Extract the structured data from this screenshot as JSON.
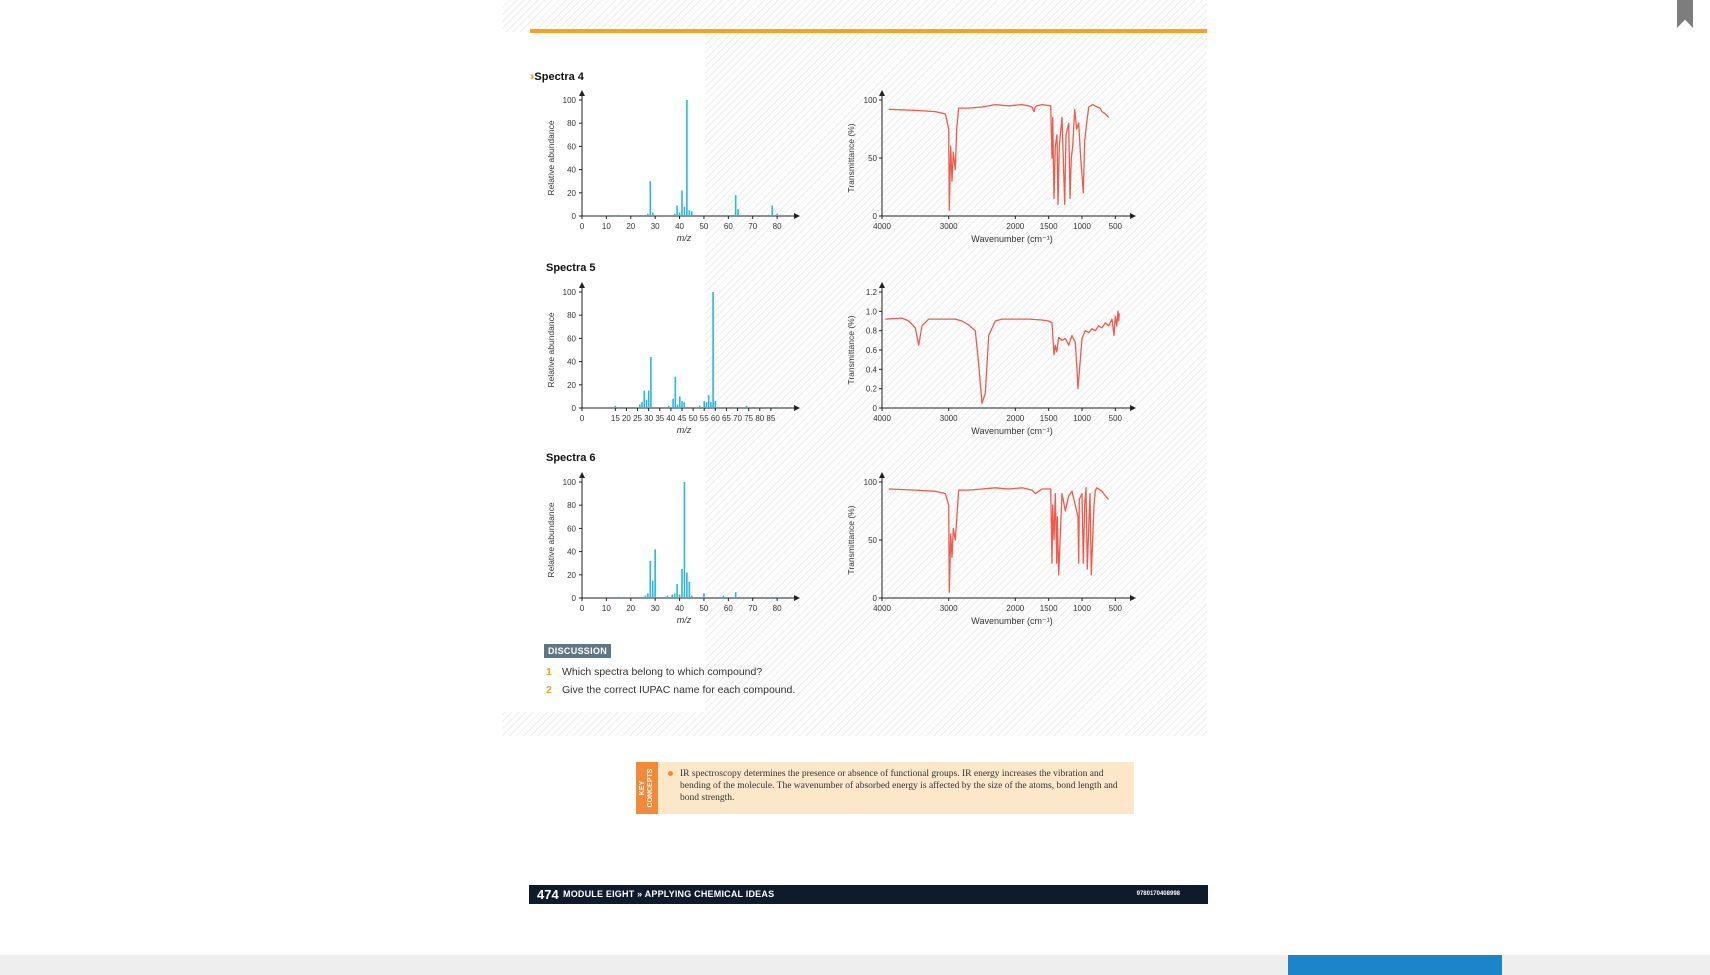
{
  "spectra": [
    {
      "title": "Spectra 4",
      "has_chevron": true
    },
    {
      "title": "Spectra 5",
      "has_chevron": false
    },
    {
      "title": "Spectra 6",
      "has_chevron": false
    }
  ],
  "discussion": {
    "label": "DISCUSSION",
    "questions": [
      {
        "num": "1",
        "text": "Which spectra belong to which compound?"
      },
      {
        "num": "2",
        "text": "Give the correct IUPAC name for each compound."
      }
    ]
  },
  "key_concepts": {
    "tab_label": "KEY CONCEPTS",
    "text": "IR spectroscopy determines the presence or absence of functional groups. IR energy increases the vibration and bending of the molecule. The wavenumber of absorbed energy is affected by the size of the atoms, bond length and bond strength."
  },
  "footer": {
    "page_number": "474",
    "module": "MODULE EIGHT » APPLYING CHEMICAL IDEAS",
    "isbn": "9780170408998"
  },
  "colors": {
    "ms": "#29b6e0",
    "ir": "#f05a4a",
    "accent": "#f5a12a"
  },
  "chart_data": [
    {
      "type": "bar",
      "title": "Spectra 4",
      "xlabel": "m/z",
      "ylabel": "Relative abundance",
      "xlim": [
        0,
        82
      ],
      "ylim": [
        0,
        100
      ],
      "xticks": [
        "0",
        "10",
        "20",
        "30",
        "40",
        "50",
        "60",
        "70",
        "80"
      ],
      "yticks": [
        "0",
        "20",
        "40",
        "60",
        "80",
        "100"
      ],
      "x": [
        15,
        26,
        27,
        28,
        29,
        38,
        39,
        40,
        41,
        42,
        43,
        44,
        45,
        58,
        63,
        64,
        65,
        78,
        80
      ],
      "values": [
        1,
        1,
        2,
        30,
        3,
        2,
        9,
        3,
        22,
        8,
        100,
        5,
        4,
        1,
        18,
        6,
        1,
        9,
        2
      ]
    },
    {
      "type": "line",
      "title": "Spectra 4",
      "xlabel": "Wavenumber (cm⁻¹)",
      "ylabel": "Transmittance (%)",
      "xlim": [
        4000,
        400
      ],
      "ylim": [
        0,
        100
      ],
      "yticks": [
        "0",
        "50",
        "100"
      ],
      "xticks": [
        "4000",
        "3000",
        "2000",
        "1500",
        "1000",
        "500"
      ],
      "x": [
        3900,
        3500,
        3200,
        3050,
        3000,
        2990,
        2970,
        2950,
        2930,
        2900,
        2880,
        2850,
        2700,
        2500,
        2300,
        2100,
        1900,
        1800,
        1750,
        1720,
        1700,
        1680,
        1600,
        1470,
        1450,
        1440,
        1420,
        1400,
        1375,
        1360,
        1340,
        1300,
        1260,
        1240,
        1200,
        1180,
        1160,
        1140,
        1110,
        1080,
        1050,
        1020,
        980,
        960,
        930,
        900,
        870,
        840,
        810,
        770,
        730,
        700,
        650,
        600
      ],
      "values": [
        92,
        91,
        90,
        88,
        75,
        5,
        60,
        30,
        55,
        40,
        75,
        93,
        93,
        94,
        96,
        95,
        96,
        95,
        94,
        90,
        94,
        95,
        96,
        95,
        50,
        85,
        15,
        60,
        70,
        10,
        60,
        85,
        10,
        70,
        80,
        15,
        50,
        60,
        92,
        75,
        80,
        50,
        20,
        65,
        80,
        94,
        95,
        96,
        95,
        94,
        93,
        90,
        88,
        85
      ]
    },
    {
      "type": "bar",
      "title": "Spectra 5",
      "xlabel": "m/z",
      "ylabel": "Relative abundance",
      "xlim": [
        0,
        90
      ],
      "ylim": [
        0,
        100
      ],
      "xticks": [
        "0",
        "15",
        "20",
        "25",
        "30",
        "35",
        "40",
        "45",
        "50",
        "55",
        "60",
        "65",
        "70",
        "75",
        "80",
        "85"
      ],
      "yticks": [
        "0",
        "20",
        "40",
        "60",
        "80",
        "100"
      ],
      "x": [
        15,
        18,
        26,
        27,
        28,
        29,
        30,
        31,
        39,
        41,
        42,
        43,
        44,
        45,
        46,
        53,
        55,
        56,
        57,
        58,
        59,
        60,
        70,
        74,
        88
      ],
      "values": [
        2,
        1,
        3,
        5,
        15,
        7,
        15,
        44,
        2,
        8,
        27,
        3,
        10,
        6,
        5,
        2,
        6,
        5,
        11,
        5,
        100,
        6,
        1,
        2,
        1
      ]
    },
    {
      "type": "line",
      "title": "Spectra 5",
      "xlabel": "Wavenumber (cm⁻¹)",
      "ylabel": "Transmittance (%)",
      "xlim": [
        4000,
        400
      ],
      "ylim": [
        0,
        1.2
      ],
      "yticks": [
        "0",
        "0.2",
        "0.4",
        "0.6",
        "0.8",
        "1.0",
        "1.2"
      ],
      "xticks": [
        "4000",
        "3000",
        "2000",
        "1500",
        "1000",
        "500"
      ],
      "x": [
        3950,
        3700,
        3600,
        3500,
        3450,
        3400,
        3300,
        3100,
        2900,
        2800,
        2700,
        2600,
        2550,
        2500,
        2450,
        2400,
        2300,
        2200,
        2000,
        1800,
        1600,
        1500,
        1450,
        1420,
        1400,
        1380,
        1350,
        1300,
        1250,
        1200,
        1150,
        1100,
        1080,
        1060,
        1000,
        950,
        900,
        850,
        800,
        750,
        700,
        650,
        600,
        550,
        520,
        500,
        480,
        460,
        450,
        440
      ],
      "values": [
        0.92,
        0.93,
        0.9,
        0.83,
        0.65,
        0.85,
        0.92,
        0.92,
        0.92,
        0.9,
        0.86,
        0.8,
        0.45,
        0.05,
        0.15,
        0.75,
        0.9,
        0.92,
        0.92,
        0.92,
        0.91,
        0.9,
        0.88,
        0.55,
        0.65,
        0.58,
        0.73,
        0.7,
        0.72,
        0.65,
        0.75,
        0.68,
        0.45,
        0.2,
        0.72,
        0.8,
        0.78,
        0.82,
        0.8,
        0.85,
        0.83,
        0.88,
        0.85,
        0.92,
        0.75,
        0.95,
        0.85,
        1.0,
        0.9,
        0.98
      ]
    },
    {
      "type": "bar",
      "title": "Spectra 6",
      "xlabel": "m/z",
      "ylabel": "Relative abundance",
      "xlim": [
        0,
        82
      ],
      "ylim": [
        0,
        100
      ],
      "xticks": [
        "0",
        "10",
        "20",
        "30",
        "40",
        "50",
        "60",
        "70",
        "80"
      ],
      "yticks": [
        "0",
        "20",
        "40",
        "60",
        "80",
        "100"
      ],
      "x": [
        15,
        26,
        27,
        28,
        29,
        30,
        35,
        37,
        38,
        39,
        40,
        41,
        42,
        43,
        44,
        45,
        50,
        57,
        58,
        63,
        65,
        78,
        80
      ],
      "values": [
        1,
        2,
        4,
        32,
        15,
        42,
        2,
        3,
        4,
        12,
        3,
        25,
        100,
        22,
        14,
        2,
        4,
        1,
        2,
        5,
        1,
        1,
        1
      ]
    },
    {
      "type": "line",
      "title": "Spectra 6",
      "xlabel": "Wavenumber (cm⁻¹)",
      "ylabel": "Transmittance (%)",
      "xlim": [
        4000,
        400
      ],
      "ylim": [
        0,
        100
      ],
      "yticks": [
        "0",
        "50",
        "100"
      ],
      "xticks": [
        "4000",
        "3000",
        "2000",
        "1500",
        "1000",
        "500"
      ],
      "x": [
        3900,
        3500,
        3200,
        3050,
        3000,
        2990,
        2970,
        2950,
        2930,
        2900,
        2850,
        2700,
        2500,
        2300,
        2100,
        1900,
        1750,
        1700,
        1650,
        1600,
        1470,
        1450,
        1440,
        1420,
        1400,
        1380,
        1370,
        1350,
        1300,
        1250,
        1200,
        1150,
        1100,
        1060,
        1050,
        1040,
        1000,
        980,
        960,
        940,
        920,
        900,
        880,
        860,
        820,
        800,
        780,
        700,
        650,
        600
      ],
      "values": [
        94,
        93,
        92,
        90,
        80,
        5,
        55,
        35,
        60,
        50,
        93,
        93,
        94,
        95,
        94,
        95,
        93,
        90,
        92,
        94,
        94,
        30,
        80,
        50,
        90,
        30,
        70,
        20,
        90,
        75,
        88,
        92,
        80,
        70,
        30,
        85,
        90,
        30,
        80,
        95,
        25,
        60,
        90,
        20,
        80,
        92,
        95,
        92,
        88,
        85
      ]
    }
  ]
}
